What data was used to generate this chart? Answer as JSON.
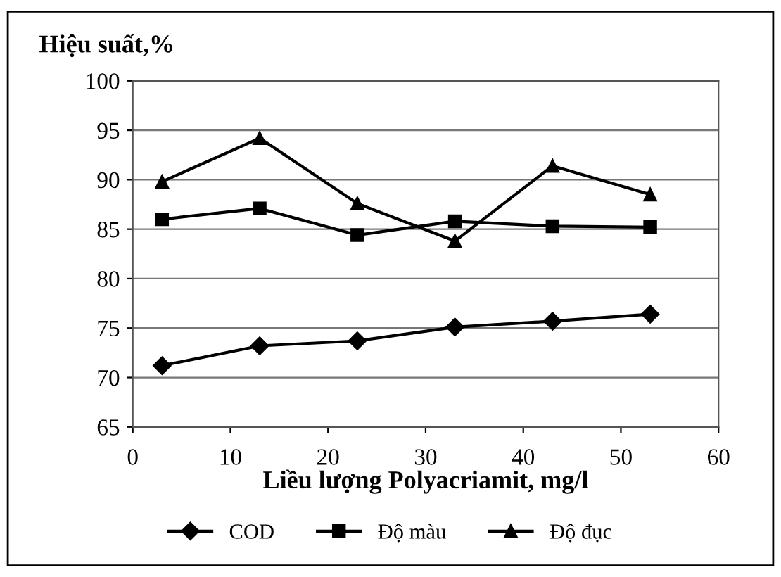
{
  "chart_data": {
    "type": "line",
    "ylabel": "Hiệu suất,%",
    "xlabel": "Liều lượng Polyacriamit, mg/l",
    "x": [
      3,
      13,
      23,
      33,
      43,
      53
    ],
    "series": [
      {
        "name": "COD",
        "color": "#000000",
        "marker": "diamond",
        "values": [
          71.2,
          73.2,
          73.7,
          75.1,
          75.7,
          76.4
        ]
      },
      {
        "name": "Độ màu",
        "color": "#000000",
        "marker": "square",
        "values": [
          86.0,
          87.1,
          84.4,
          85.8,
          85.3,
          85.2
        ]
      },
      {
        "name": "Độ đục",
        "color": "#000000",
        "marker": "triangle",
        "values": [
          89.8,
          94.2,
          87.6,
          83.8,
          91.4,
          88.5
        ]
      }
    ],
    "xlim": [
      0,
      60
    ],
    "xticks": [
      0,
      10,
      20,
      30,
      40,
      50,
      60
    ],
    "ylim": [
      65,
      100
    ],
    "yticks": [
      65,
      70,
      75,
      80,
      85,
      90,
      95,
      100
    ],
    "grid": "y",
    "legend": "bottom",
    "line_style": "solid"
  }
}
